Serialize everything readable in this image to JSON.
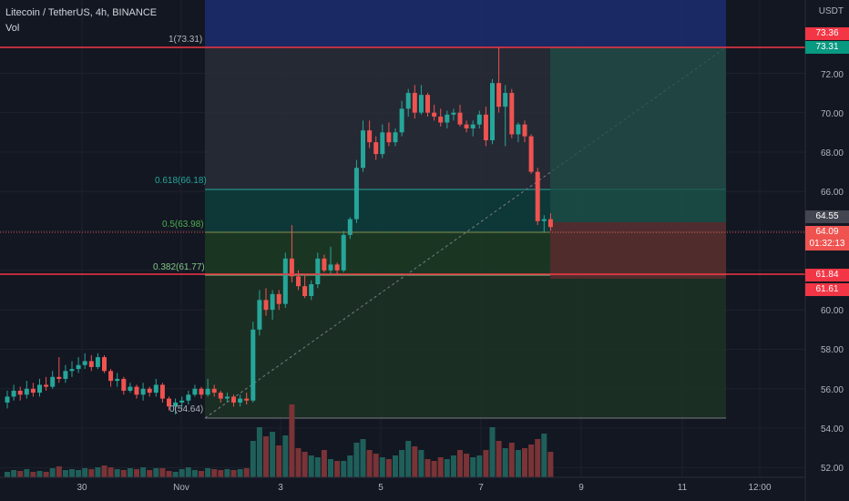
{
  "header": {
    "title": "Litecoin / TetherUS, 4h, BINANCE",
    "volume_label": "Vol"
  },
  "price_axis": {
    "currency": "USDT",
    "ticks": [
      "72.00",
      "70.00",
      "68.00",
      "66.00",
      "60.00",
      "58.00",
      "56.00",
      "54.00",
      "52.00"
    ]
  },
  "time_axis": {
    "ticks": [
      "30",
      "Nov",
      "3",
      "5",
      "7",
      "9",
      "11",
      "12:00"
    ]
  },
  "badges": {
    "resistance_high": "73.36",
    "fib_top": "73.31",
    "last_close": "64.55",
    "current_price": "64.09",
    "countdown": "01:32:13",
    "support_high": "61.84",
    "support_low": "61.61"
  },
  "fib_labels": {
    "level_1": "1(73.31)",
    "level_0618": "0.618(66.18)",
    "level_05": "0.5(63.98)",
    "level_0382": "0.382(61.77)",
    "level_0": "0(54.64)"
  },
  "colors": {
    "background": "#131722",
    "bull": "#26a69a",
    "bear": "#ef5350",
    "level_line": "#f23645"
  },
  "chart_data": {
    "type": "candlestick",
    "symbol": "Litecoin / TetherUS",
    "interval": "4h",
    "exchange": "BINANCE",
    "ylim": [
      51.5,
      75.5
    ],
    "ohlc": [
      [
        55.3,
        55.9,
        55.0,
        55.6
      ],
      [
        55.6,
        56.2,
        55.4,
        55.9
      ],
      [
        55.9,
        56.1,
        55.4,
        55.7
      ],
      [
        55.7,
        56.4,
        55.5,
        56.0
      ],
      [
        56.0,
        56.3,
        55.6,
        55.8
      ],
      [
        55.8,
        56.5,
        55.6,
        56.2
      ],
      [
        56.2,
        56.6,
        55.9,
        56.1
      ],
      [
        56.1,
        56.9,
        56.0,
        56.6
      ],
      [
        56.6,
        57.6,
        56.3,
        56.5
      ],
      [
        56.5,
        57.2,
        56.3,
        56.9
      ],
      [
        56.9,
        57.4,
        56.6,
        57.0
      ],
      [
        57.0,
        57.6,
        56.8,
        57.2
      ],
      [
        57.2,
        57.8,
        57.0,
        57.4
      ],
      [
        57.4,
        57.7,
        56.9,
        57.1
      ],
      [
        57.1,
        57.8,
        57.0,
        57.6
      ],
      [
        57.6,
        57.7,
        56.8,
        56.9
      ],
      [
        56.9,
        57.0,
        56.1,
        56.4
      ],
      [
        56.4,
        56.8,
        56.1,
        56.5
      ],
      [
        56.5,
        56.6,
        55.7,
        55.9
      ],
      [
        55.9,
        56.3,
        55.8,
        56.1
      ],
      [
        56.1,
        56.2,
        55.5,
        55.7
      ],
      [
        55.7,
        56.3,
        55.4,
        56.0
      ],
      [
        56.0,
        56.1,
        55.6,
        55.8
      ],
      [
        55.8,
        56.5,
        55.6,
        56.2
      ],
      [
        56.2,
        56.3,
        55.3,
        55.5
      ],
      [
        55.5,
        55.6,
        54.9,
        55.1
      ],
      [
        55.1,
        55.5,
        54.7,
        55.3
      ],
      [
        55.3,
        55.6,
        55.0,
        55.4
      ],
      [
        55.4,
        55.9,
        55.2,
        55.7
      ],
      [
        55.7,
        56.2,
        55.6,
        56.0
      ],
      [
        56.0,
        56.1,
        55.5,
        55.7
      ],
      [
        55.7,
        56.5,
        55.6,
        56.0
      ],
      [
        56.0,
        56.2,
        55.6,
        55.8
      ],
      [
        55.8,
        55.9,
        55.3,
        55.5
      ],
      [
        55.5,
        55.8,
        55.3,
        55.6
      ],
      [
        55.6,
        55.7,
        55.1,
        55.3
      ],
      [
        55.3,
        55.7,
        55.1,
        55.5
      ],
      [
        55.5,
        55.8,
        55.2,
        55.4
      ],
      [
        55.4,
        59.4,
        55.3,
        59.0
      ],
      [
        59.0,
        61.0,
        58.7,
        60.5
      ],
      [
        60.5,
        61.1,
        59.7,
        60.0
      ],
      [
        60.0,
        61.0,
        59.5,
        60.8
      ],
      [
        60.8,
        61.0,
        60.0,
        60.3
      ],
      [
        60.3,
        62.9,
        60.1,
        62.6
      ],
      [
        62.6,
        64.3,
        61.4,
        61.7
      ],
      [
        61.7,
        62.0,
        61.0,
        61.2
      ],
      [
        61.2,
        61.8,
        60.6,
        60.7
      ],
      [
        60.7,
        61.5,
        60.5,
        61.3
      ],
      [
        61.3,
        62.9,
        61.1,
        62.6
      ],
      [
        62.6,
        62.8,
        61.9,
        62.0
      ],
      [
        62.0,
        63.2,
        61.8,
        62.3
      ],
      [
        62.3,
        62.4,
        61.8,
        62.0
      ],
      [
        62.0,
        64.0,
        61.9,
        63.8
      ],
      [
        63.8,
        64.7,
        63.6,
        64.6
      ],
      [
        64.6,
        67.6,
        64.4,
        67.2
      ],
      [
        67.2,
        69.6,
        67.0,
        69.1
      ],
      [
        69.1,
        69.6,
        68.2,
        68.5
      ],
      [
        68.5,
        68.8,
        67.6,
        67.9
      ],
      [
        67.9,
        69.4,
        67.7,
        69.0
      ],
      [
        69.0,
        69.5,
        68.3,
        68.5
      ],
      [
        68.5,
        69.2,
        68.3,
        69.0
      ],
      [
        69.0,
        70.6,
        68.8,
        70.2
      ],
      [
        70.2,
        71.2,
        69.8,
        71.0
      ],
      [
        71.0,
        71.4,
        69.7,
        70.0
      ],
      [
        70.0,
        71.4,
        69.9,
        70.9
      ],
      [
        70.9,
        71.0,
        69.8,
        70.0
      ],
      [
        70.0,
        70.4,
        69.6,
        69.8
      ],
      [
        69.8,
        70.2,
        69.3,
        69.5
      ],
      [
        69.5,
        70.1,
        69.2,
        69.9
      ],
      [
        69.9,
        70.2,
        69.6,
        70.0
      ],
      [
        70.0,
        70.4,
        69.3,
        69.4
      ],
      [
        69.4,
        69.6,
        69.0,
        69.2
      ],
      [
        69.2,
        69.6,
        68.8,
        69.4
      ],
      [
        69.4,
        70.1,
        69.2,
        69.9
      ],
      [
        69.9,
        70.3,
        68.3,
        68.6
      ],
      [
        68.6,
        71.7,
        68.4,
        71.5
      ],
      [
        71.5,
        73.3,
        70.0,
        70.3
      ],
      [
        70.3,
        71.4,
        68.3,
        71.0
      ],
      [
        71.0,
        71.2,
        68.7,
        68.9
      ],
      [
        68.9,
        69.5,
        68.5,
        69.4
      ],
      [
        69.4,
        69.6,
        68.5,
        68.8
      ],
      [
        68.8,
        68.9,
        66.9,
        67.0
      ],
      [
        67.0,
        67.2,
        64.3,
        64.5
      ],
      [
        64.5,
        64.8,
        63.9,
        64.6
      ],
      [
        64.6,
        64.9,
        64.0,
        64.2
      ]
    ],
    "volume": [
      6,
      8,
      7,
      9,
      6,
      7,
      6,
      10,
      12,
      8,
      9,
      8,
      10,
      9,
      11,
      13,
      11,
      9,
      8,
      10,
      9,
      11,
      8,
      10,
      10,
      7,
      6,
      9,
      11,
      8,
      7,
      10,
      9,
      8,
      9,
      8,
      9,
      10,
      40,
      55,
      45,
      50,
      35,
      46,
      80,
      32,
      28,
      24,
      22,
      30,
      20,
      18,
      18,
      24,
      38,
      42,
      30,
      26,
      22,
      20,
      24,
      30,
      40,
      34,
      30,
      20,
      18,
      22,
      20,
      24,
      30,
      26,
      22,
      24,
      30,
      55,
      40,
      32,
      38,
      30,
      32,
      36,
      42,
      48,
      28
    ],
    "annotations": {
      "horizontal_lines": [
        73.36,
        61.84,
        61.61
      ],
      "fib_levels": {
        "1": 73.31,
        "0.618": 66.18,
        "0.5": 63.98,
        "0.382": 61.77,
        "0": 54.64
      },
      "position_tool": {
        "entry": 64.09,
        "stop": 61.61,
        "target": 73.31
      }
    }
  }
}
